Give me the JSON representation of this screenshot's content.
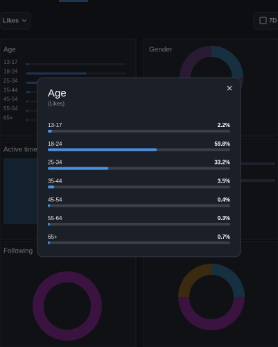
{
  "header": {
    "metric": "Likes",
    "range": "7D"
  },
  "panels": {
    "age": "Age",
    "gender": "Gender",
    "active_time": "Active time",
    "following": "Following"
  },
  "modal": {
    "title": "Age",
    "subtitle": "(Likes)",
    "xlim": [
      0,
      100
    ],
    "rows": [
      {
        "label": "13-17",
        "value": 2.2,
        "value_label": "2.2%"
      },
      {
        "label": "18-24",
        "value": 59.8,
        "value_label": "59.8%"
      },
      {
        "label": "25-34",
        "value": 33.2,
        "value_label": "33.2%"
      },
      {
        "label": "35-44",
        "value": 3.5,
        "value_label": "3.5%"
      },
      {
        "label": "45-54",
        "value": 0.4,
        "value_label": "0.4%"
      },
      {
        "label": "55-64",
        "value": 0.3,
        "value_label": "0.3%"
      },
      {
        "label": "65+",
        "value": 0.7,
        "value_label": "0.7%"
      }
    ]
  }
}
